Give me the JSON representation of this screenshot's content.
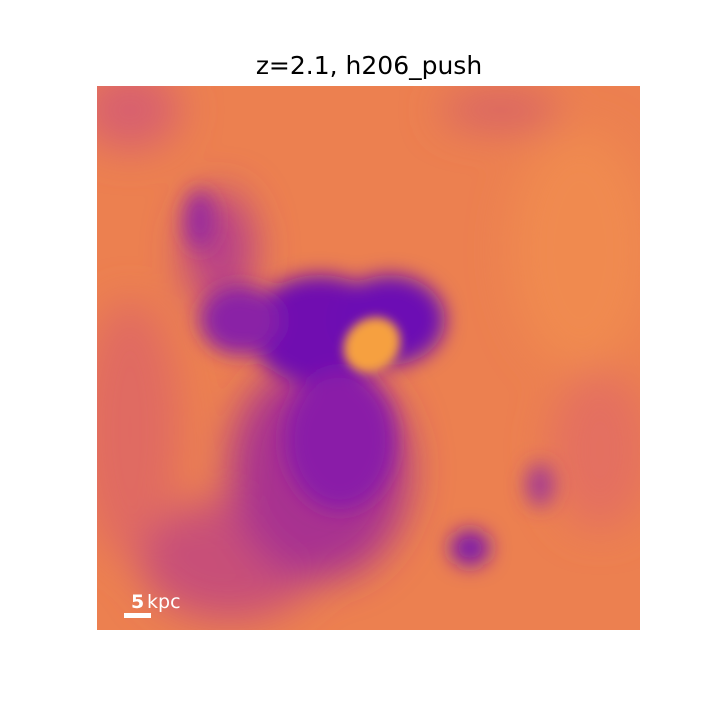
{
  "title": "z=2.1, h206_push",
  "scale_bar": {
    "length": 5,
    "unit": "kpc"
  }
}
